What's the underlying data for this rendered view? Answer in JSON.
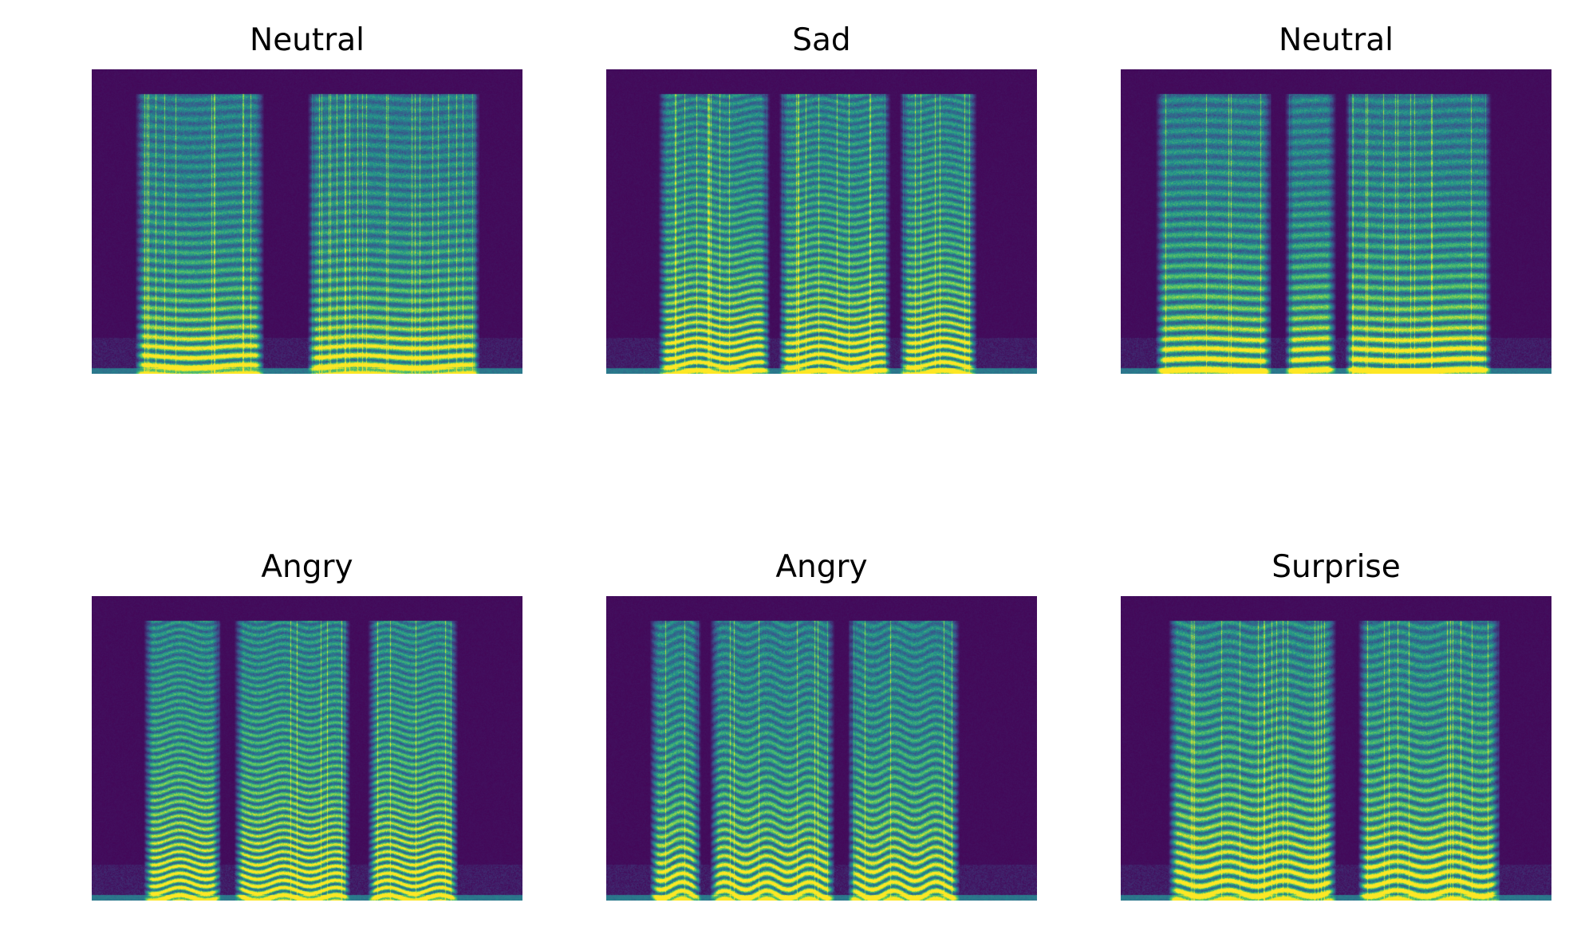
{
  "figure": {
    "panels": [
      {
        "title": "Neutral",
        "colormap": "viridis"
      },
      {
        "title": "Sad",
        "colormap": "viridis"
      },
      {
        "title": "Neutral",
        "colormap": "viridis"
      },
      {
        "title": "Angry",
        "colormap": "viridis"
      },
      {
        "title": "Angry",
        "colormap": "viridis"
      },
      {
        "title": "Surprise",
        "colormap": "viridis"
      }
    ],
    "colors": {
      "background": "#440154",
      "low": "#3b528b",
      "mid": "#21918c",
      "high": "#5ec962",
      "peak": "#fde725"
    }
  }
}
